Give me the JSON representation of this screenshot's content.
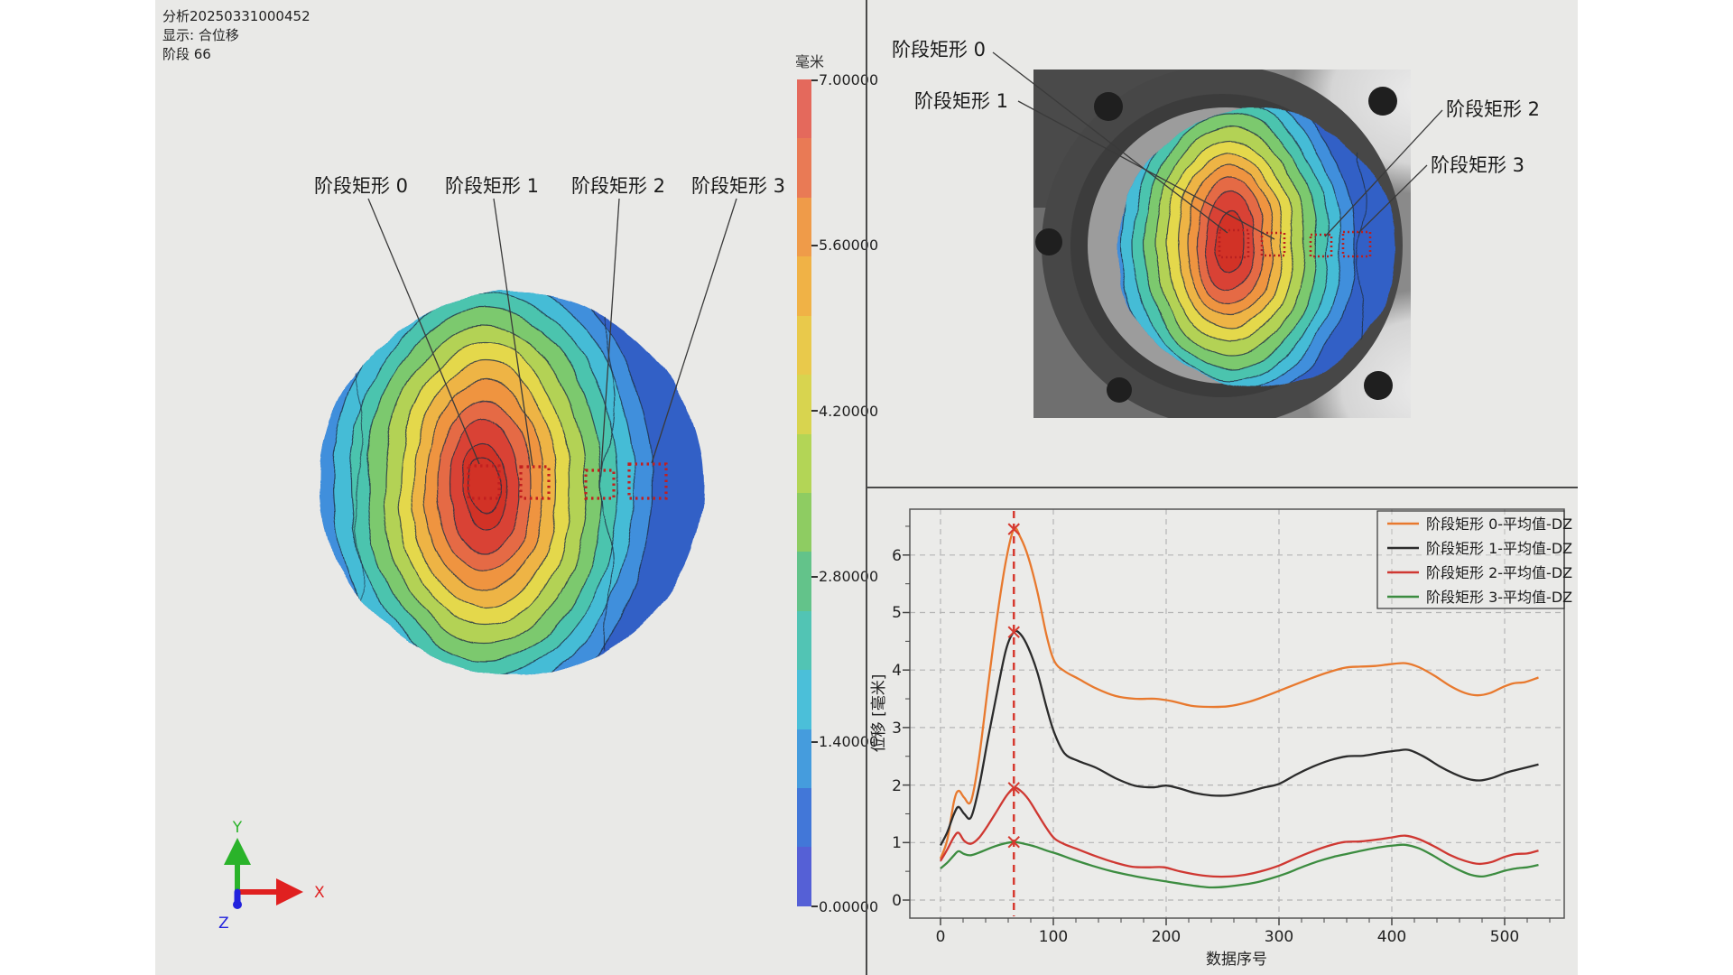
{
  "info": {
    "analysis": "分析20250331000452",
    "display": "显示: 合位移",
    "stage": "阶段 66"
  },
  "colorbar": {
    "unit": "毫米",
    "labels": [
      "7.00000",
      "5.60000",
      "4.20000",
      "2.80000",
      "1.40000",
      "0.00000"
    ],
    "segment_colors": [
      "#e4695c",
      "#e97a55",
      "#ef9b49",
      "#f0b246",
      "#e9c94b",
      "#d8d44f",
      "#b3d556",
      "#8ecc62",
      "#63c38a",
      "#52c4b4",
      "#4bbfd9",
      "#459cdd",
      "#4277d8",
      "#5560d6"
    ]
  },
  "contour_colors": {
    "base": "#3160c6",
    "bands": [
      "#3f8fdc",
      "#45bcd6",
      "#4cc4ae",
      "#7cc96e",
      "#b3d254",
      "#e4d84b",
      "#eeb445",
      "#ef9440",
      "#e56a44",
      "#d94334",
      "#d23226"
    ],
    "line": "#1e2f45",
    "roi": "#c21f1f"
  },
  "left_view": {
    "labels": [
      "阶段矩形 0",
      "阶段矩形 1",
      "阶段矩形 2",
      "阶段矩形 3"
    ],
    "axis": {
      "x": "X",
      "y": "Y",
      "z": "Z"
    },
    "axis_colors": {
      "x": "#e02020",
      "y": "#2ab32a",
      "z": "#2222dd"
    }
  },
  "camera_view": {
    "labels": [
      "阶段矩形 0",
      "阶段矩形 1",
      "阶段矩形 2",
      "阶段矩形 3"
    ]
  },
  "chart_data": {
    "type": "line",
    "xlabel": "数据序号",
    "ylabel": "位移 [毫米]",
    "xlim": [
      -27,
      553
    ],
    "ylim": [
      -0.31,
      6.8
    ],
    "xticks": [
      "0",
      "100",
      "200",
      "300",
      "400",
      "500"
    ],
    "yticks": [
      "0",
      "1",
      "2",
      "3",
      "4",
      "5",
      "6"
    ],
    "grid": true,
    "legend_position": "top-right",
    "cursor_x": 65,
    "cursor_color": "#d63a30",
    "marker_points": [
      [
        65,
        6.45
      ],
      [
        65,
        4.66
      ],
      [
        65,
        1.95
      ],
      [
        65,
        1.01
      ]
    ],
    "series": [
      {
        "name": "阶段矩形 0-平均值-DZ",
        "color": "#e8792e",
        "points": [
          [
            0,
            0.72
          ],
          [
            6,
            1.05
          ],
          [
            12,
            1.72
          ],
          [
            16,
            1.9
          ],
          [
            21,
            1.78
          ],
          [
            27,
            1.72
          ],
          [
            34,
            2.45
          ],
          [
            42,
            3.7
          ],
          [
            50,
            4.9
          ],
          [
            58,
            5.9
          ],
          [
            65,
            6.45
          ],
          [
            71,
            6.3
          ],
          [
            78,
            5.95
          ],
          [
            86,
            5.35
          ],
          [
            94,
            4.6
          ],
          [
            101,
            4.15
          ],
          [
            110,
            3.98
          ],
          [
            122,
            3.85
          ],
          [
            138,
            3.68
          ],
          [
            155,
            3.55
          ],
          [
            172,
            3.5
          ],
          [
            190,
            3.5
          ],
          [
            205,
            3.46
          ],
          [
            222,
            3.38
          ],
          [
            238,
            3.36
          ],
          [
            255,
            3.37
          ],
          [
            272,
            3.44
          ],
          [
            290,
            3.56
          ],
          [
            308,
            3.7
          ],
          [
            325,
            3.83
          ],
          [
            342,
            3.95
          ],
          [
            358,
            4.04
          ],
          [
            372,
            4.06
          ],
          [
            385,
            4.07
          ],
          [
            398,
            4.1
          ],
          [
            412,
            4.12
          ],
          [
            424,
            4.05
          ],
          [
            438,
            3.9
          ],
          [
            452,
            3.72
          ],
          [
            465,
            3.6
          ],
          [
            476,
            3.56
          ],
          [
            487,
            3.6
          ],
          [
            498,
            3.7
          ],
          [
            508,
            3.77
          ],
          [
            518,
            3.79
          ],
          [
            530,
            3.87
          ]
        ]
      },
      {
        "name": "阶段矩形 1-平均值-DZ",
        "color": "#2b2b2b",
        "points": [
          [
            0,
            0.95
          ],
          [
            6,
            1.18
          ],
          [
            12,
            1.5
          ],
          [
            16,
            1.62
          ],
          [
            21,
            1.5
          ],
          [
            27,
            1.44
          ],
          [
            34,
            1.95
          ],
          [
            42,
            2.8
          ],
          [
            50,
            3.6
          ],
          [
            58,
            4.35
          ],
          [
            65,
            4.66
          ],
          [
            71,
            4.62
          ],
          [
            78,
            4.38
          ],
          [
            86,
            3.95
          ],
          [
            94,
            3.35
          ],
          [
            101,
            2.9
          ],
          [
            110,
            2.55
          ],
          [
            122,
            2.42
          ],
          [
            138,
            2.3
          ],
          [
            155,
            2.12
          ],
          [
            172,
            1.99
          ],
          [
            188,
            1.96
          ],
          [
            200,
            1.99
          ],
          [
            212,
            1.94
          ],
          [
            226,
            1.86
          ],
          [
            240,
            1.82
          ],
          [
            255,
            1.82
          ],
          [
            270,
            1.87
          ],
          [
            285,
            1.95
          ],
          [
            300,
            2.02
          ],
          [
            315,
            2.18
          ],
          [
            330,
            2.32
          ],
          [
            345,
            2.43
          ],
          [
            360,
            2.5
          ],
          [
            375,
            2.51
          ],
          [
            390,
            2.56
          ],
          [
            405,
            2.6
          ],
          [
            415,
            2.61
          ],
          [
            428,
            2.5
          ],
          [
            442,
            2.33
          ],
          [
            455,
            2.2
          ],
          [
            467,
            2.11
          ],
          [
            478,
            2.08
          ],
          [
            490,
            2.13
          ],
          [
            502,
            2.22
          ],
          [
            514,
            2.28
          ],
          [
            530,
            2.36
          ]
        ]
      },
      {
        "name": "阶段矩形 2-平均值-DZ",
        "color": "#cf3832",
        "points": [
          [
            0,
            0.68
          ],
          [
            6,
            0.88
          ],
          [
            12,
            1.1
          ],
          [
            16,
            1.17
          ],
          [
            21,
            1.03
          ],
          [
            27,
            0.98
          ],
          [
            34,
            1.08
          ],
          [
            42,
            1.3
          ],
          [
            50,
            1.55
          ],
          [
            58,
            1.8
          ],
          [
            65,
            1.95
          ],
          [
            71,
            1.9
          ],
          [
            78,
            1.75
          ],
          [
            86,
            1.5
          ],
          [
            94,
            1.25
          ],
          [
            101,
            1.07
          ],
          [
            110,
            0.97
          ],
          [
            122,
            0.88
          ],
          [
            138,
            0.76
          ],
          [
            155,
            0.65
          ],
          [
            170,
            0.58
          ],
          [
            185,
            0.57
          ],
          [
            198,
            0.57
          ],
          [
            212,
            0.5
          ],
          [
            228,
            0.44
          ],
          [
            242,
            0.41
          ],
          [
            256,
            0.41
          ],
          [
            270,
            0.44
          ],
          [
            284,
            0.5
          ],
          [
            300,
            0.6
          ],
          [
            315,
            0.73
          ],
          [
            330,
            0.85
          ],
          [
            345,
            0.95
          ],
          [
            358,
            1.01
          ],
          [
            372,
            1.02
          ],
          [
            386,
            1.05
          ],
          [
            400,
            1.09
          ],
          [
            412,
            1.12
          ],
          [
            424,
            1.06
          ],
          [
            438,
            0.93
          ],
          [
            452,
            0.78
          ],
          [
            465,
            0.68
          ],
          [
            477,
            0.63
          ],
          [
            488,
            0.66
          ],
          [
            500,
            0.75
          ],
          [
            510,
            0.8
          ],
          [
            520,
            0.81
          ],
          [
            530,
            0.86
          ]
        ]
      },
      {
        "name": "阶段矩形 3-平均值-DZ",
        "color": "#3c8c40",
        "points": [
          [
            0,
            0.55
          ],
          [
            6,
            0.65
          ],
          [
            12,
            0.78
          ],
          [
            16,
            0.85
          ],
          [
            21,
            0.8
          ],
          [
            27,
            0.78
          ],
          [
            36,
            0.84
          ],
          [
            46,
            0.92
          ],
          [
            56,
            0.98
          ],
          [
            65,
            1.01
          ],
          [
            74,
            0.98
          ],
          [
            84,
            0.93
          ],
          [
            94,
            0.86
          ],
          [
            104,
            0.8
          ],
          [
            118,
            0.7
          ],
          [
            134,
            0.6
          ],
          [
            150,
            0.51
          ],
          [
            166,
            0.44
          ],
          [
            182,
            0.38
          ],
          [
            198,
            0.33
          ],
          [
            214,
            0.28
          ],
          [
            228,
            0.24
          ],
          [
            240,
            0.22
          ],
          [
            252,
            0.23
          ],
          [
            265,
            0.26
          ],
          [
            278,
            0.3
          ],
          [
            292,
            0.37
          ],
          [
            306,
            0.46
          ],
          [
            320,
            0.57
          ],
          [
            334,
            0.67
          ],
          [
            348,
            0.75
          ],
          [
            362,
            0.81
          ],
          [
            376,
            0.87
          ],
          [
            390,
            0.92
          ],
          [
            402,
            0.95
          ],
          [
            412,
            0.96
          ],
          [
            424,
            0.9
          ],
          [
            436,
            0.78
          ],
          [
            448,
            0.64
          ],
          [
            460,
            0.52
          ],
          [
            470,
            0.44
          ],
          [
            480,
            0.41
          ],
          [
            490,
            0.45
          ],
          [
            500,
            0.51
          ],
          [
            510,
            0.55
          ],
          [
            520,
            0.57
          ],
          [
            530,
            0.61
          ]
        ]
      }
    ]
  }
}
